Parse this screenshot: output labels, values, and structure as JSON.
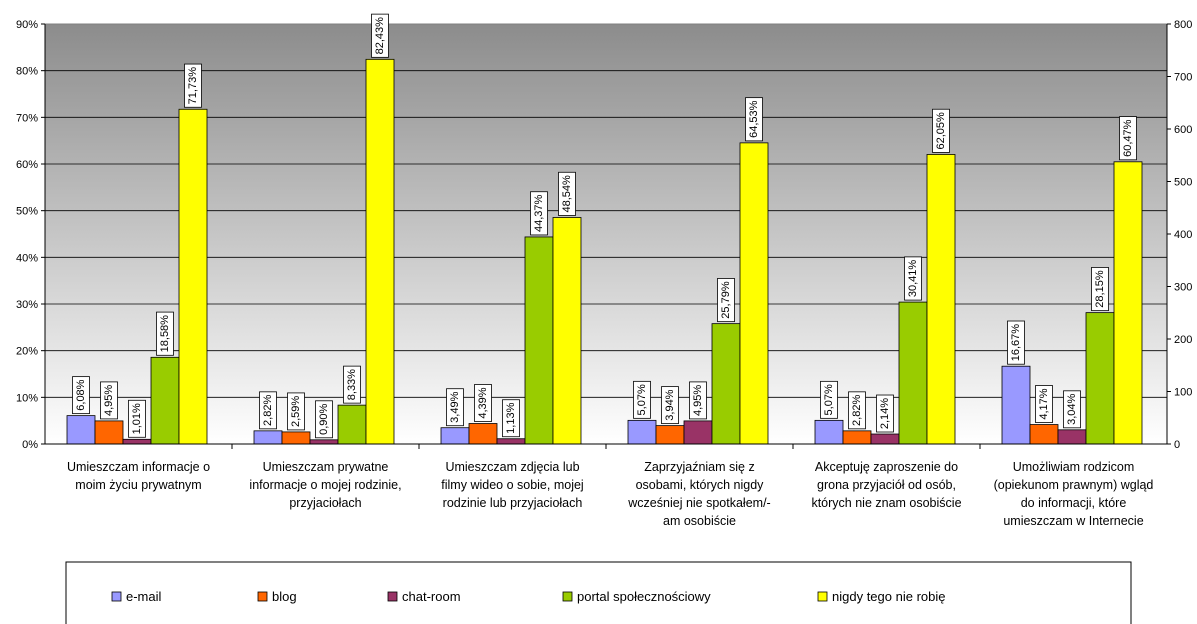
{
  "chart_data": {
    "type": "bar",
    "categories": [
      [
        "Umieszczam informacje o",
        "moim życiu prywatnym"
      ],
      [
        "Umieszczam prywatne",
        "informacje o mojej rodzinie,",
        "przyjaciołach"
      ],
      [
        "Umieszczam zdjęcia lub",
        "filmy wideo o sobie, mojej",
        "rodzinie lub przyjaciołach"
      ],
      [
        "Zaprzyjaźniam się z",
        "osobami, których nigdy",
        "wcześniej nie spotkałem/-",
        "am osobiście"
      ],
      [
        "Akceptuję zaproszenie do",
        "grona przyjaciół od osób,",
        "których nie znam osobiście"
      ],
      [
        "Umożliwiam rodzicom",
        "(opiekunom prawnym) wgląd",
        "do informacji, które",
        "umieszczam w Internecie"
      ]
    ],
    "series": [
      {
        "name": "e-mail",
        "color": "#9999FF",
        "values": [
          6.08,
          2.82,
          3.49,
          5.07,
          5.07,
          16.67
        ],
        "labels": [
          "6,08%",
          "2,82%",
          "3,49%",
          "5,07%",
          "5,07%",
          "16,67%"
        ]
      },
      {
        "name": "blog",
        "color": "#FF6600",
        "values": [
          4.95,
          2.59,
          4.39,
          3.94,
          2.82,
          4.17
        ],
        "labels": [
          "4,95%",
          "2,59%",
          "4,39%",
          "3,94%",
          "2,82%",
          "4,17%"
        ]
      },
      {
        "name": "chat-room",
        "color": "#993366",
        "values": [
          1.01,
          0.9,
          1.13,
          4.95,
          2.14,
          3.04
        ],
        "labels": [
          "1,01%",
          "0,90%",
          "1,13%",
          "4,95%",
          "2,14%",
          "3,04%"
        ]
      },
      {
        "name": "portal społecznościowy",
        "color": "#99CC00",
        "values": [
          18.58,
          8.33,
          44.37,
          25.79,
          30.41,
          28.15
        ],
        "labels": [
          "18,58%",
          "8,33%",
          "44,37%",
          "25,79%",
          "30,41%",
          "28,15%"
        ]
      },
      {
        "name": "nigdy tego nie robię",
        "color": "#FFFF00",
        "values": [
          71.73,
          82.43,
          48.54,
          64.53,
          62.05,
          60.47
        ],
        "labels": [
          "71,73%",
          "82,43%",
          "48,54%",
          "64,53%",
          "62,05%",
          "60,47%"
        ]
      }
    ],
    "ylim": [
      0,
      90
    ],
    "ytick_labels": [
      "0%",
      "10%",
      "20%",
      "30%",
      "40%",
      "50%",
      "60%",
      "70%",
      "80%",
      "90%"
    ],
    "y2lim": [
      0,
      800
    ],
    "y2tick_labels": [
      "0",
      "100",
      "200",
      "300",
      "400",
      "500",
      "600",
      "700",
      "800"
    ],
    "grid": true,
    "legend_position": "bottom"
  }
}
